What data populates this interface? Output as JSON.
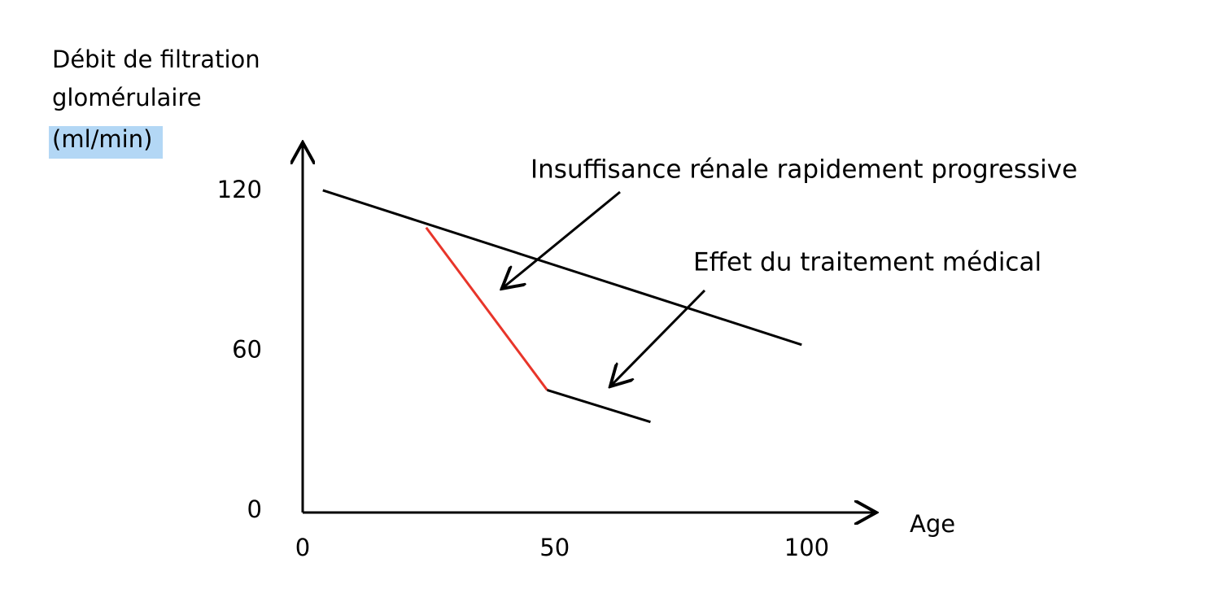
{
  "chart_data": {
    "type": "line",
    "ylabel": [
      "Débit de filtration",
      "glomérulaire",
      "(ml/min)"
    ],
    "xlabel": "Age",
    "annotations": [
      "Insuffisance rénale rapidement progressive",
      "Effet du traitement médical"
    ],
    "xlim": [
      0,
      113
    ],
    "ylim": [
      0,
      139
    ],
    "xticks": [
      0,
      50,
      100
    ],
    "yticks": [
      0,
      60,
      120
    ],
    "grid": false,
    "series": [
      {
        "color": "#000000",
        "x": [
          4,
          99
        ],
        "values": [
          121,
          63
        ]
      },
      {
        "color": "#e8352a",
        "x": [
          24.5,
          48.5
        ],
        "values": [
          107,
          46
        ]
      },
      {
        "color": "#000000",
        "x": [
          48.5,
          69
        ],
        "values": [
          46,
          34
        ]
      }
    ]
  }
}
